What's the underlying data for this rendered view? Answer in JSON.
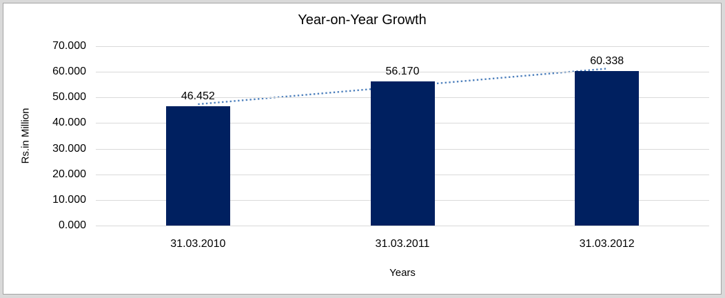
{
  "frame": {
    "outer_background": "#d9d9d9",
    "panel_background": "#ffffff",
    "panel_border_color": "#a3a3a3"
  },
  "chart_data": {
    "type": "bar",
    "title": "Year-on-Year Growth",
    "xlabel": "Years",
    "ylabel": "Rs.in Million",
    "categories": [
      "31.03.2010",
      "31.03.2011",
      "31.03.2012"
    ],
    "values": [
      46.452,
      56.17,
      60.338
    ],
    "value_labels": [
      "46.452",
      "56.170",
      "60.338"
    ],
    "ylim": [
      0,
      70
    ],
    "yticks": [
      "0.000",
      "10.000",
      "20.000",
      "30.000",
      "40.000",
      "50.000",
      "60.000",
      "70.000"
    ],
    "grid": true,
    "legend": "none",
    "bar_color": "#002060",
    "gridline_color": "#d9d9d9",
    "trendline": {
      "type": "linear",
      "style": "dotted",
      "color": "#4f81bd"
    }
  }
}
